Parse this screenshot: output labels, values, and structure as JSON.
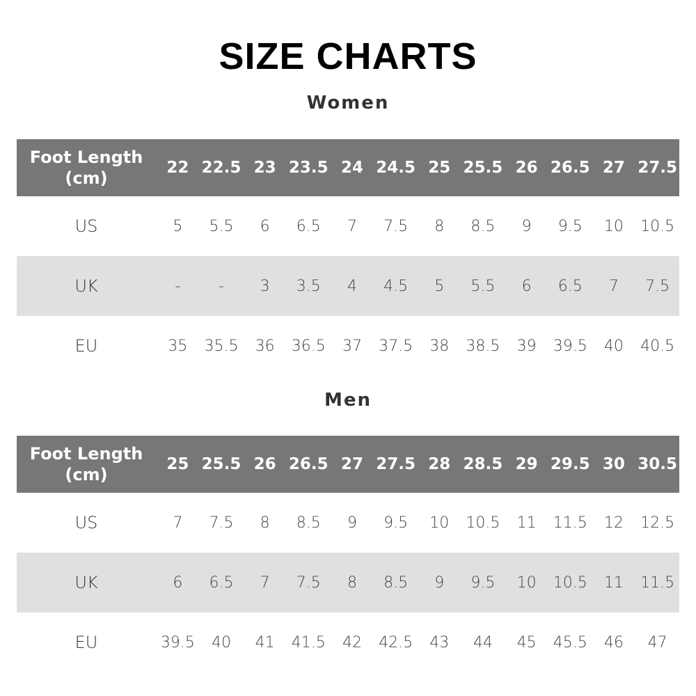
{
  "title": "SIZE CHARTS",
  "colors": {
    "header_bg": "#777777",
    "alt_row_bg": "#e0e0e0"
  },
  "sections": [
    {
      "name": "Women",
      "header_label": "Foot Length (cm)",
      "foot_length": [
        "22",
        "22.5",
        "23",
        "23.5",
        "24",
        "24.5",
        "25",
        "25.5",
        "26",
        "26.5",
        "27",
        "27.5"
      ],
      "rows": [
        {
          "label": "US",
          "values": [
            "5",
            "5.5",
            "6",
            "6.5",
            "7",
            "7.5",
            "8",
            "8.5",
            "9",
            "9.5",
            "10",
            "10.5"
          ]
        },
        {
          "label": "UK",
          "values": [
            "-",
            "-",
            "3",
            "3.5",
            "4",
            "4.5",
            "5",
            "5.5",
            "6",
            "6.5",
            "7",
            "7.5"
          ]
        },
        {
          "label": "EU",
          "values": [
            "35",
            "35.5",
            "36",
            "36.5",
            "37",
            "37.5",
            "38",
            "38.5",
            "39",
            "39.5",
            "40",
            "40.5"
          ]
        }
      ]
    },
    {
      "name": "Men",
      "header_label": "Foot Length (cm)",
      "foot_length": [
        "25",
        "25.5",
        "26",
        "26.5",
        "27",
        "27.5",
        "28",
        "28.5",
        "29",
        "29.5",
        "30",
        "30.5"
      ],
      "rows": [
        {
          "label": "US",
          "values": [
            "7",
            "7.5",
            "8",
            "8.5",
            "9",
            "9.5",
            "10",
            "10.5",
            "11",
            "11.5",
            "12",
            "12.5"
          ]
        },
        {
          "label": "UK",
          "values": [
            "6",
            "6.5",
            "7",
            "7.5",
            "8",
            "8.5",
            "9",
            "9.5",
            "10",
            "10.5",
            "11",
            "11.5"
          ]
        },
        {
          "label": "EU",
          "values": [
            "39.5",
            "40",
            "41",
            "41.5",
            "42",
            "42.5",
            "43",
            "44",
            "45",
            "45.5",
            "46",
            "47"
          ]
        }
      ]
    }
  ]
}
